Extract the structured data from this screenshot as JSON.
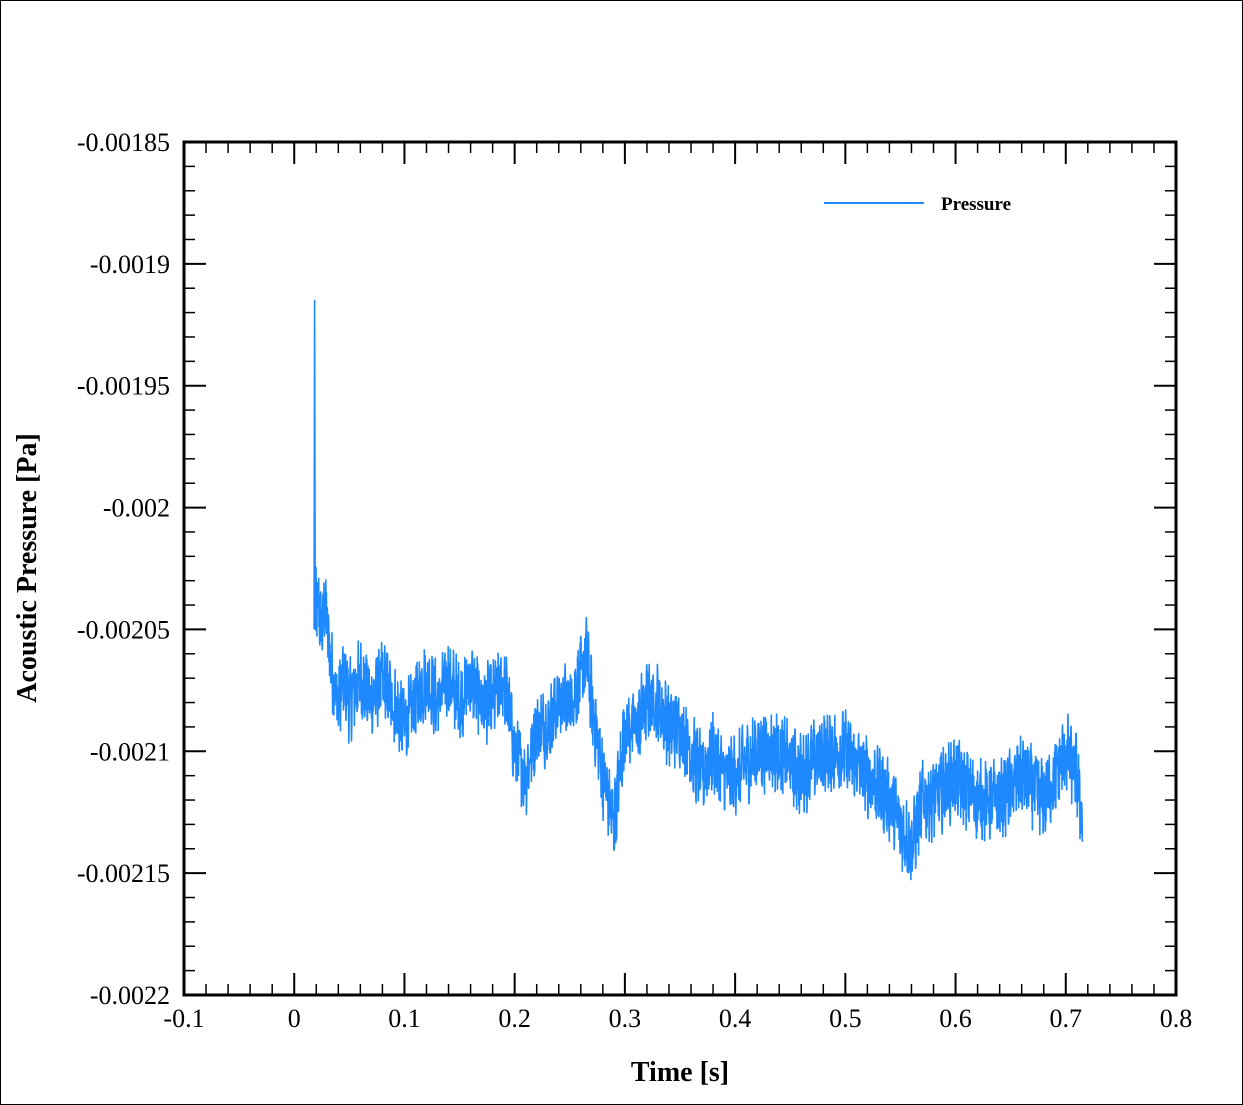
{
  "chart_data": {
    "type": "line",
    "title": "",
    "xlabel": "Time [s]",
    "ylabel": "Acoustic Pressure [Pa]",
    "xlim": [
      -0.1,
      0.8
    ],
    "ylim": [
      -0.0022,
      -0.00185
    ],
    "x_ticks": [
      "-0.1",
      "0",
      "0.1",
      "0.2",
      "0.3",
      "0.4",
      "0.5",
      "0.6",
      "0.7",
      "0.8"
    ],
    "y_ticks": [
      "-0.00185",
      "-0.0019",
      "-0.00195",
      "-0.002",
      "-0.00205",
      "-0.0021",
      "-0.00215",
      "-0.0022"
    ],
    "grid": false,
    "legend_position": "top-right",
    "series": [
      {
        "name": "Pressure",
        "color": "#1e88ff",
        "x": [
          0.018,
          0.0185,
          0.019,
          0.02,
          0.022,
          0.025,
          0.028,
          0.03,
          0.035,
          0.04,
          0.045,
          0.05,
          0.06,
          0.07,
          0.08,
          0.09,
          0.1,
          0.11,
          0.12,
          0.13,
          0.14,
          0.15,
          0.16,
          0.17,
          0.18,
          0.19,
          0.2,
          0.21,
          0.22,
          0.23,
          0.24,
          0.25,
          0.26,
          0.265,
          0.27,
          0.28,
          0.29,
          0.295,
          0.3,
          0.31,
          0.32,
          0.33,
          0.34,
          0.35,
          0.36,
          0.37,
          0.38,
          0.39,
          0.4,
          0.42,
          0.44,
          0.46,
          0.48,
          0.5,
          0.52,
          0.54,
          0.55,
          0.56,
          0.57,
          0.58,
          0.6,
          0.62,
          0.64,
          0.66,
          0.68,
          0.7,
          0.71,
          0.715
        ],
        "values": [
          -0.00205,
          -0.001915,
          -0.00205,
          -0.00204,
          -0.00204,
          -0.00205,
          -0.00204,
          -0.00205,
          -0.00207,
          -0.00208,
          -0.00207,
          -0.00208,
          -0.00207,
          -0.00208,
          -0.00207,
          -0.00208,
          -0.00209,
          -0.00208,
          -0.00207,
          -0.00208,
          -0.00207,
          -0.00208,
          -0.00207,
          -0.00208,
          -0.00208,
          -0.00207,
          -0.0021,
          -0.00211,
          -0.00209,
          -0.00209,
          -0.00208,
          -0.00208,
          -0.00207,
          -0.00206,
          -0.00208,
          -0.00211,
          -0.00213,
          -0.00211,
          -0.00209,
          -0.00209,
          -0.00208,
          -0.00208,
          -0.00209,
          -0.00209,
          -0.0021,
          -0.00211,
          -0.0021,
          -0.00211,
          -0.00211,
          -0.0021,
          -0.0021,
          -0.00211,
          -0.0021,
          -0.0021,
          -0.00211,
          -0.00212,
          -0.00213,
          -0.00214,
          -0.00212,
          -0.00212,
          -0.00211,
          -0.00212,
          -0.00212,
          -0.00211,
          -0.00212,
          -0.0021,
          -0.00211,
          -0.00213
        ]
      }
    ]
  }
}
